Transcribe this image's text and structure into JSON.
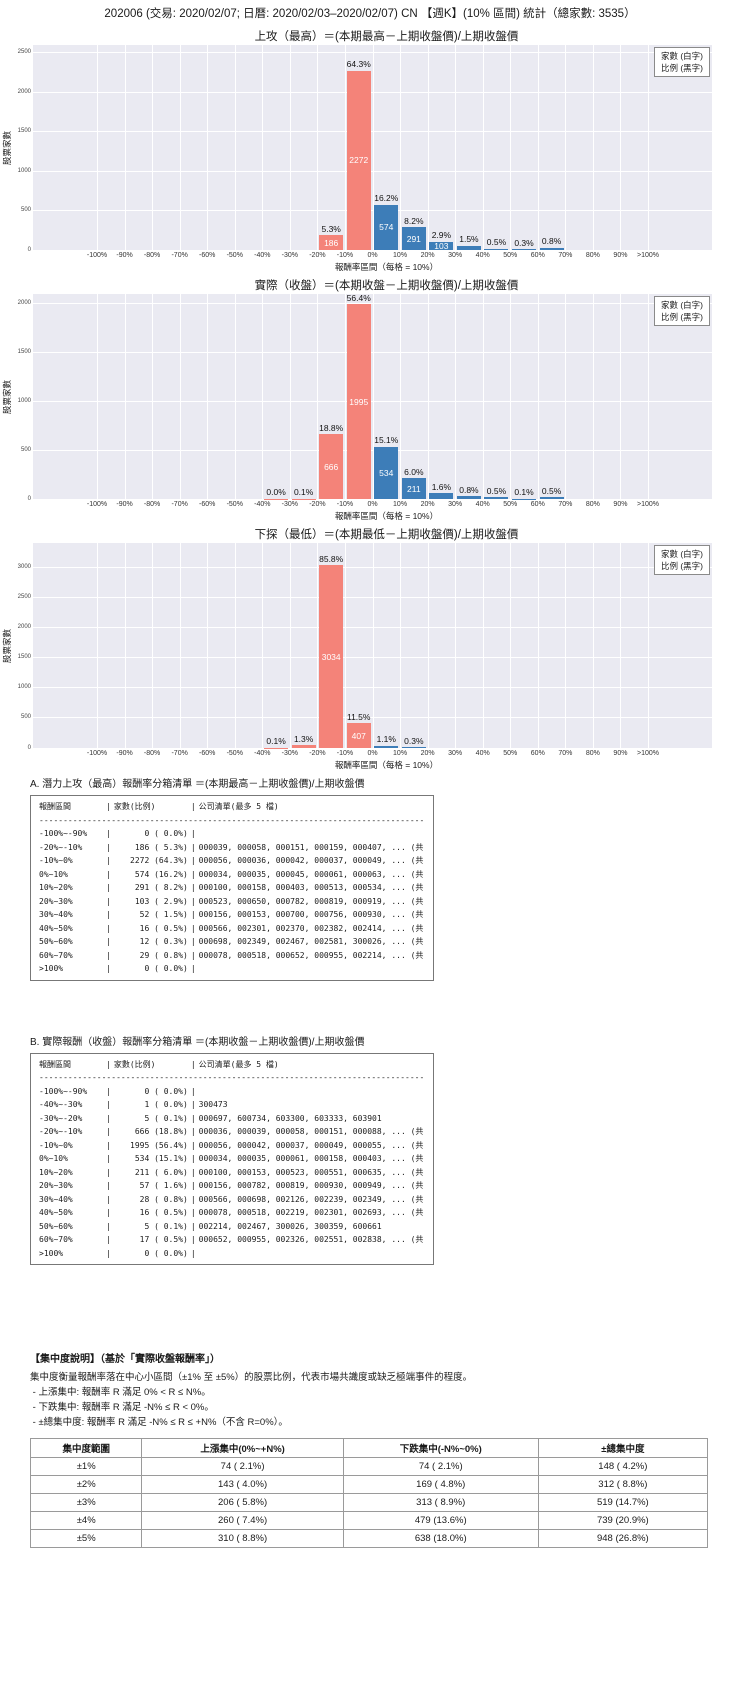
{
  "page_title": "202006 (交易: 2020/02/07; 日曆: 2020/02/03–2020/02/07) CN 【週K】(10% 區間) 統計（總家數: 3535）",
  "legend": {
    "line1": "家數 (白字)",
    "line2": "比例 (黑字)"
  },
  "colors": {
    "negative_bar": "#f48379",
    "positive_bar": "#3d7db8",
    "plot_bg": "#eaeaf2",
    "grid": "#ffffff"
  },
  "chart_data": [
    {
      "type": "bar",
      "title": "上攻（最高）＝(本期最高－上期收盤價)/上期收盤價",
      "ylabel": "股票家數",
      "xlabel": "報酬率區間（每格 = 10%）",
      "x_ticks": [
        "-100%",
        "-90%",
        "-80%",
        "-70%",
        "-60%",
        "-50%",
        "-40%",
        "-30%",
        "-20%",
        "-10%",
        "0%",
        "10%",
        "20%",
        "30%",
        "40%",
        "50%",
        "60%",
        "70%",
        "80%",
        "90%",
        ">100%"
      ],
      "y_ticks": [
        0,
        500,
        1000,
        1500,
        2000,
        2500
      ],
      "axis_max": 2600,
      "grid": true,
      "legend_position": "upper right",
      "bars": [
        {
          "bin": "-20%~-10%",
          "bin_index": 8,
          "count": 186,
          "pct": "5.3%",
          "color": "negative"
        },
        {
          "bin": "-10%~0%",
          "bin_index": 9,
          "count": 2272,
          "pct": "64.3%",
          "color": "negative"
        },
        {
          "bin": "0%~10%",
          "bin_index": 10,
          "count": 574,
          "pct": "16.2%",
          "color": "positive"
        },
        {
          "bin": "10%~20%",
          "bin_index": 11,
          "count": 291,
          "pct": "8.2%",
          "color": "positive"
        },
        {
          "bin": "20%~30%",
          "bin_index": 12,
          "count": 103,
          "pct": "2.9%",
          "color": "positive"
        },
        {
          "bin": "30%~40%",
          "bin_index": 13,
          "count": 52,
          "pct": "1.5%",
          "color": "positive"
        },
        {
          "bin": "40%~50%",
          "bin_index": 14,
          "count": 16,
          "pct": "0.5%",
          "color": "positive"
        },
        {
          "bin": "50%~60%",
          "bin_index": 15,
          "count": 12,
          "pct": "0.3%",
          "color": "positive"
        },
        {
          "bin": "60%~70%",
          "bin_index": 16,
          "count": 29,
          "pct": "0.8%",
          "color": "positive"
        }
      ]
    },
    {
      "type": "bar",
      "title": "實際（收盤）＝(本期收盤－上期收盤價)/上期收盤價",
      "ylabel": "股票家數",
      "xlabel": "報酬率區間（每格 = 10%）",
      "x_ticks": [
        "-100%",
        "-90%",
        "-80%",
        "-70%",
        "-60%",
        "-50%",
        "-40%",
        "-30%",
        "-20%",
        "-10%",
        "0%",
        "10%",
        "20%",
        "30%",
        "40%",
        "50%",
        "60%",
        "70%",
        "80%",
        "90%",
        ">100%"
      ],
      "y_ticks": [
        0,
        500,
        1000,
        1500,
        2000
      ],
      "axis_max": 2100,
      "grid": true,
      "legend_position": "upper right",
      "bars": [
        {
          "bin": "-40%~-30%",
          "bin_index": 6,
          "count": 1,
          "pct": "0.0%",
          "color": "negative"
        },
        {
          "bin": "-30%~-20%",
          "bin_index": 7,
          "count": 5,
          "pct": "0.1%",
          "color": "negative"
        },
        {
          "bin": "-20%~-10%",
          "bin_index": 8,
          "count": 666,
          "pct": "18.8%",
          "color": "negative"
        },
        {
          "bin": "-10%~0%",
          "bin_index": 9,
          "count": 1995,
          "pct": "56.4%",
          "color": "negative"
        },
        {
          "bin": "0%~10%",
          "bin_index": 10,
          "count": 534,
          "pct": "15.1%",
          "color": "positive"
        },
        {
          "bin": "10%~20%",
          "bin_index": 11,
          "count": 211,
          "pct": "6.0%",
          "color": "positive"
        },
        {
          "bin": "20%~30%",
          "bin_index": 12,
          "count": 57,
          "pct": "1.6%",
          "color": "positive"
        },
        {
          "bin": "30%~40%",
          "bin_index": 13,
          "count": 28,
          "pct": "0.8%",
          "color": "positive"
        },
        {
          "bin": "40%~50%",
          "bin_index": 14,
          "count": 16,
          "pct": "0.5%",
          "color": "positive"
        },
        {
          "bin": "50%~60%",
          "bin_index": 15,
          "count": 5,
          "pct": "0.1%",
          "color": "positive"
        },
        {
          "bin": "60%~70%",
          "bin_index": 16,
          "count": 17,
          "pct": "0.5%",
          "color": "positive"
        }
      ]
    },
    {
      "type": "bar",
      "title": "下探（最低）＝(本期最低－上期收盤價)/上期收盤價",
      "ylabel": "股票家數",
      "xlabel": "報酬率區間（每格 = 10%）",
      "x_ticks": [
        "-100%",
        "-90%",
        "-80%",
        "-70%",
        "-60%",
        "-50%",
        "-40%",
        "-30%",
        "-20%",
        "-10%",
        "0%",
        "10%",
        "20%",
        "30%",
        "40%",
        "50%",
        "60%",
        "70%",
        "80%",
        "90%",
        ">100%"
      ],
      "y_ticks": [
        0,
        500,
        1000,
        1500,
        2000,
        2500,
        3000
      ],
      "axis_max": 3400,
      "grid": true,
      "legend_position": "upper right",
      "bars": [
        {
          "bin": "-40%~-30%",
          "bin_index": 6,
          "count": 4,
          "pct": "0.1%",
          "color": "negative"
        },
        {
          "bin": "-30%~-20%",
          "bin_index": 7,
          "count": 46,
          "pct": "1.3%",
          "color": "negative"
        },
        {
          "bin": "-20%~-10%",
          "bin_index": 8,
          "count": 3034,
          "pct": "85.8%",
          "color": "negative"
        },
        {
          "bin": "-10%~0%",
          "bin_index": 9,
          "count": 407,
          "pct": "11.5%",
          "color": "negative"
        },
        {
          "bin": "0%~10%",
          "bin_index": 10,
          "count": 39,
          "pct": "1.1%",
          "color": "positive"
        },
        {
          "bin": "10%~20%",
          "bin_index": 11,
          "count": 11,
          "pct": "0.3%",
          "color": "positive"
        }
      ]
    }
  ],
  "section_a": {
    "heading": "A. 潛力上攻（最高）報酬率分箱清單 ＝(本期最高－上期收盤價)/上期收盤價",
    "table": {
      "header": {
        "range": "報酬區間",
        "count": "家數(比例)",
        "companies": "公司清單(最多 5 檔)"
      },
      "separator": "--------------------------------------------------------------------------------------------------------------",
      "rows": [
        [
          "-100%~-90%",
          "0 ( 0.0%)",
          ""
        ],
        [
          "-20%~-10%",
          "186 ( 5.3%)",
          "000039, 000058, 000151, 000159, 000407, ... (共 186 檔)"
        ],
        [
          "-10%~0%",
          "2272 (64.3%)",
          "000056, 000036, 000042, 000037, 000049, ... (共 2272 檔)"
        ],
        [
          "0%~10%",
          "574 (16.2%)",
          "000034, 000035, 000045, 000061, 000063, ... (共 574 檔)"
        ],
        [
          "10%~20%",
          "291 ( 8.2%)",
          "000100, 000158, 000403, 000513, 000534, ... (共 291 檔)"
        ],
        [
          "20%~30%",
          "103 ( 2.9%)",
          "000523, 000650, 000782, 000819, 000919, ... (共 103 檔)"
        ],
        [
          "30%~40%",
          "52 ( 1.5%)",
          "000156, 000153, 000700, 000756, 000930, ... (共 52 檔)"
        ],
        [
          "40%~50%",
          "16 ( 0.5%)",
          "000566, 002301, 002370, 002382, 002414, ... (共 16 檔)"
        ],
        [
          "50%~60%",
          "12 ( 0.3%)",
          "000698, 002349, 002467, 002581, 300026, ... (共 12 檔)"
        ],
        [
          "60%~70%",
          "29 ( 0.8%)",
          "000078, 000518, 000652, 000955, 002214, ... (共 29 檔)"
        ],
        [
          ">100%",
          "0 ( 0.0%)",
          ""
        ]
      ]
    }
  },
  "section_b": {
    "heading": "B. 實際報酬（收盤）報酬率分箱清單 ＝(本期收盤－上期收盤價)/上期收盤價",
    "table": {
      "header": {
        "range": "報酬區間",
        "count": "家數(比例)",
        "companies": "公司清單(最多 5 檔)"
      },
      "separator": "--------------------------------------------------------------------------------------------------------------",
      "rows": [
        [
          "-100%~-90%",
          "0 ( 0.0%)",
          ""
        ],
        [
          "-40%~-30%",
          "1 ( 0.0%)",
          "300473"
        ],
        [
          "-30%~-20%",
          "5 ( 0.1%)",
          "000697, 600734, 603300, 603333, 603901"
        ],
        [
          "-20%~-10%",
          "666 (18.8%)",
          "000036, 000039, 000058, 000151, 000088, ... (共 666 檔)"
        ],
        [
          "-10%~0%",
          "1995 (56.4%)",
          "000056, 000042, 000037, 000049, 000055, ... (共 1995 檔)"
        ],
        [
          "0%~10%",
          "534 (15.1%)",
          "000034, 000035, 000061, 000158, 000403, ... (共 534 檔)"
        ],
        [
          "10%~20%",
          "211 ( 6.0%)",
          "000100, 000153, 000523, 000551, 000635, ... (共 211 檔)"
        ],
        [
          "20%~30%",
          "57 ( 1.6%)",
          "000156, 000782, 000819, 000930, 000949, ... (共 57 檔)"
        ],
        [
          "30%~40%",
          "28 ( 0.8%)",
          "000566, 000698, 002126, 002239, 002349, ... (共 28 檔)"
        ],
        [
          "40%~50%",
          "16 ( 0.5%)",
          "000078, 000518, 002219, 002301, 002693, ... (共 16 檔)"
        ],
        [
          "50%~60%",
          "5 ( 0.1%)",
          "002214, 002467, 300026, 300359, 600661"
        ],
        [
          "60%~70%",
          "17 ( 0.5%)",
          "000652, 000955, 002326, 002551, 002838, ... (共 17 檔)"
        ],
        [
          ">100%",
          "0 ( 0.0%)",
          ""
        ]
      ]
    }
  },
  "concentration": {
    "title": "【集中度說明】（基於「實際收盤報酬率」）",
    "desc": "集中度衡量報酬率落在中心小區間（±1% 至 ±5%）的股票比例，代表市場共識度或缺乏極端事件的程度。",
    "bullets": [
      " - 上漲集中: 報酬率 R 滿足 0% < R ≤ N%。",
      " - 下跌集中: 報酬率 R 滿足 -N% ≤ R < 0%。",
      " - ±總集中度: 報酬率 R 滿足 -N% ≤ R ≤ +N%（不含 R=0%）。"
    ],
    "table": {
      "headers": [
        "集中度範圍",
        "上漲集中(0%~+N%)",
        "下跌集中(-N%~0%)",
        "±總集中度"
      ],
      "rows": [
        [
          "±1%",
          "74 ( 2.1%)",
          "74 ( 2.1%)",
          "148 ( 4.2%)"
        ],
        [
          "±2%",
          "143 ( 4.0%)",
          "169 ( 4.8%)",
          "312 ( 8.8%)"
        ],
        [
          "±3%",
          "206 ( 5.8%)",
          "313 ( 8.9%)",
          "519 (14.7%)"
        ],
        [
          "±4%",
          "260 ( 7.4%)",
          "479 (13.6%)",
          "739 (20.9%)"
        ],
        [
          "±5%",
          "310 ( 8.8%)",
          "638 (18.0%)",
          "948 (26.8%)"
        ]
      ]
    }
  }
}
